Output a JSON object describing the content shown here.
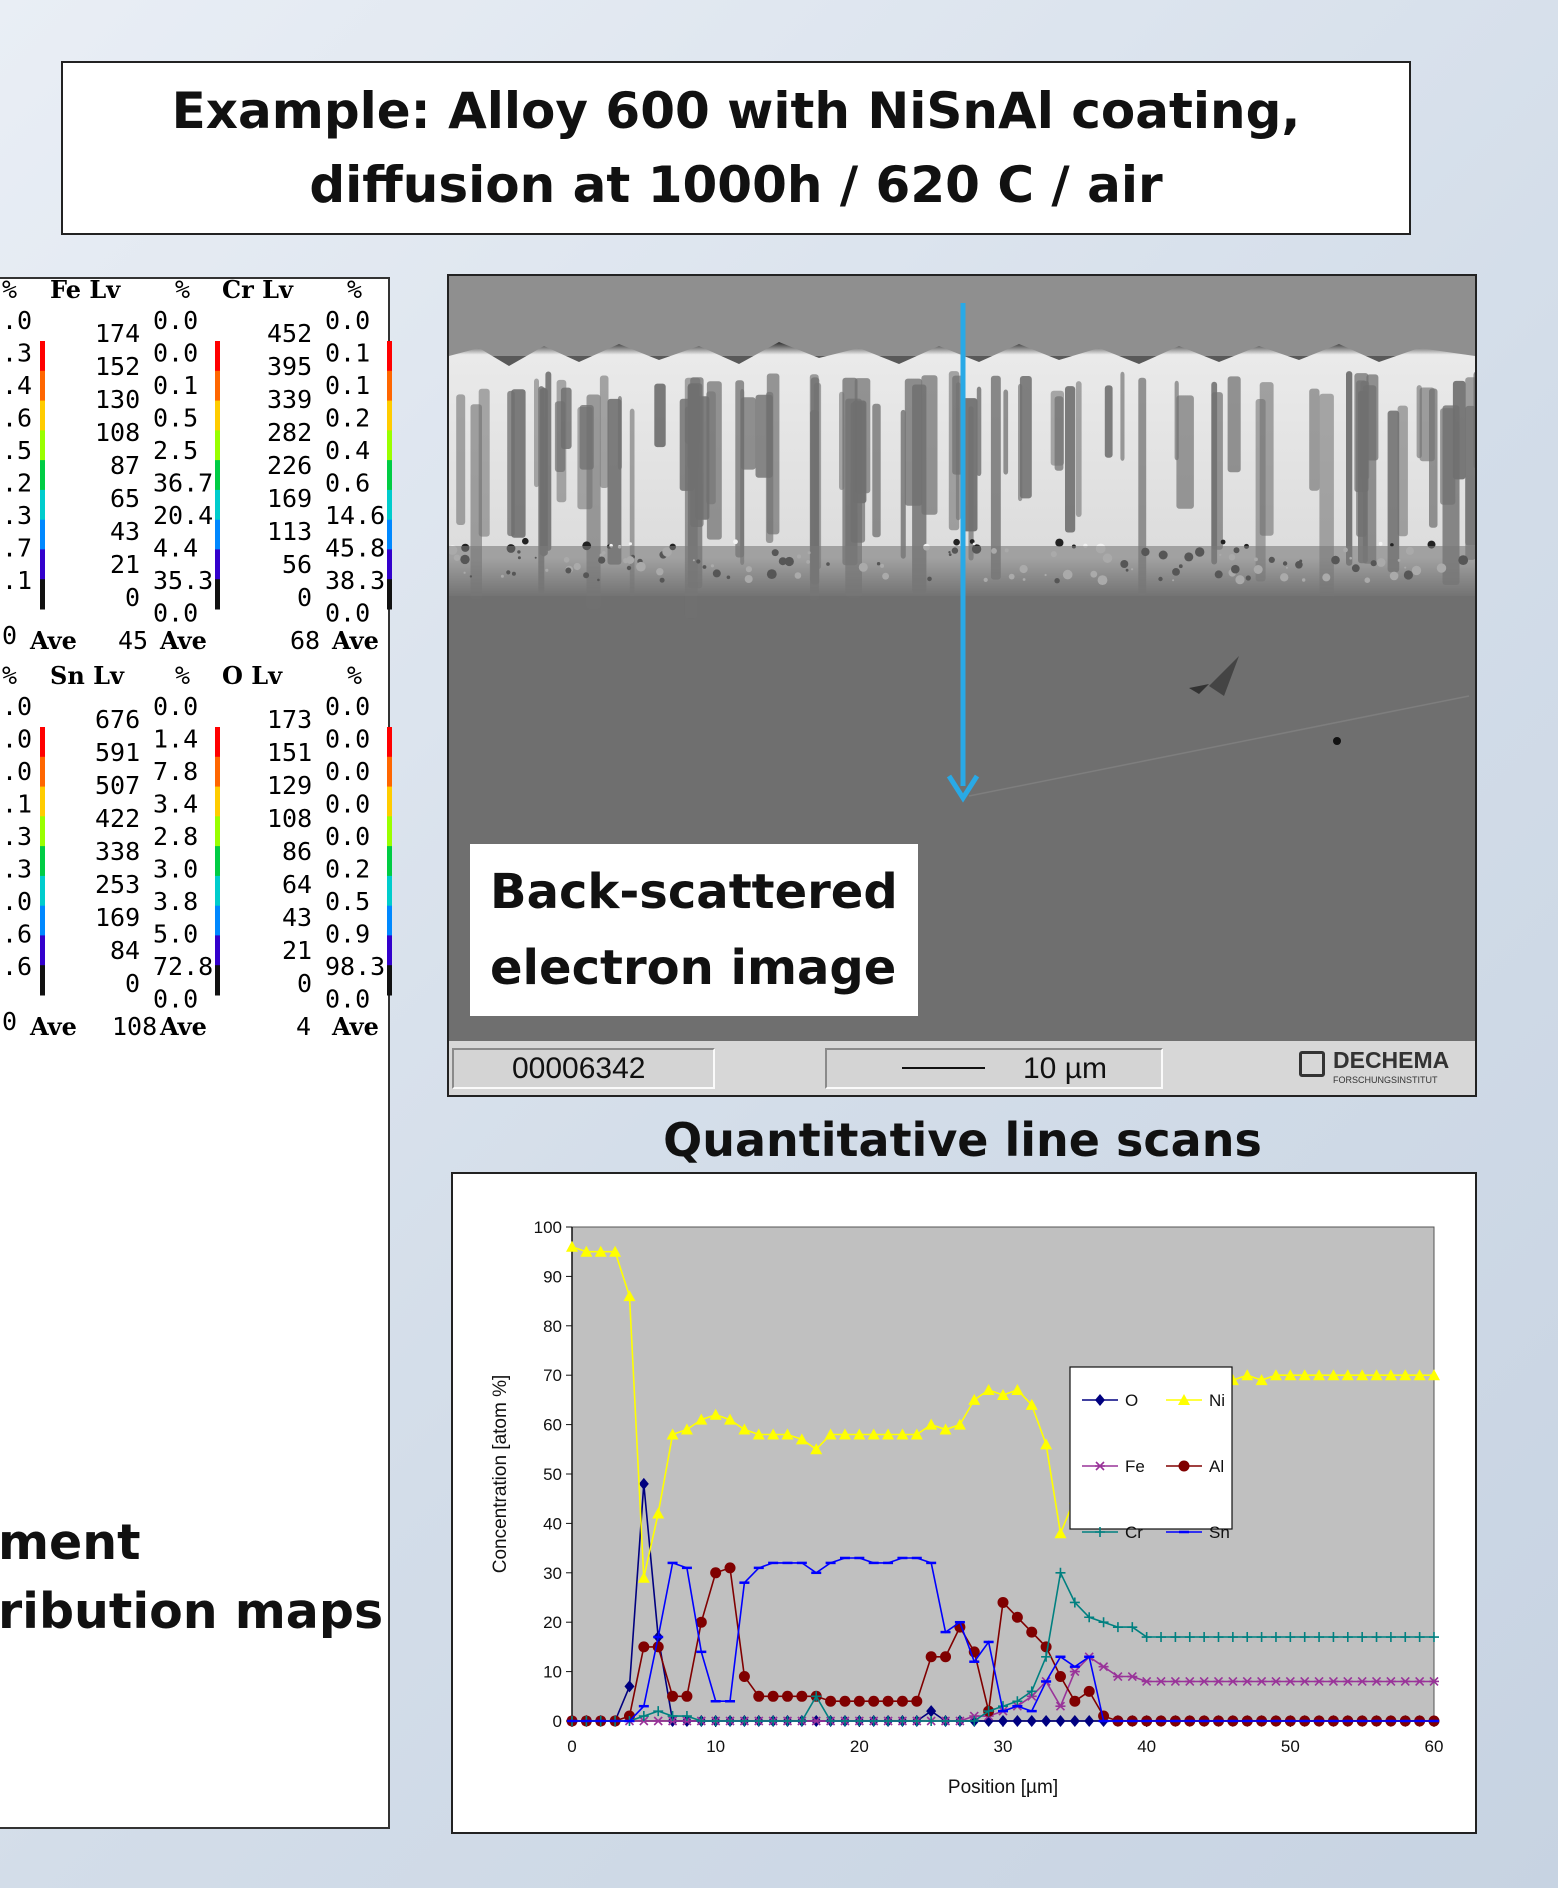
{
  "title": {
    "line1": "Example: Alloy 600 with NiSnAl coating,",
    "line2": "diffusion at 1000h / 620  C / air"
  },
  "maps_panel": {
    "maps": [
      {
        "element_label": "Fe Lv",
        "counts": [
          "174",
          "152",
          "130",
          "108",
          "87",
          "65",
          "43",
          "21",
          "0"
        ],
        "percentages": [
          "0.0",
          "0.0",
          "0.1",
          "0.5",
          "2.5",
          "36.7",
          "20.4",
          "4.4",
          "35.3",
          "0.0"
        ],
        "ave_value": "45",
        "ave_label": "Ave"
      },
      {
        "element_label": "Cr Lv",
        "counts": [
          "452",
          "395",
          "339",
          "282",
          "226",
          "169",
          "113",
          "56",
          "0"
        ],
        "percentages": [
          "0.0",
          "0.1",
          "0.1",
          "0.2",
          "0.4",
          "0.6",
          "14.6",
          "45.8",
          "38.3",
          "0.0"
        ],
        "ave_value": "68",
        "ave_label": "Ave"
      },
      {
        "element_label": "Sn Lv",
        "counts": [
          "676",
          "591",
          "507",
          "422",
          "338",
          "253",
          "169",
          "84",
          "0"
        ],
        "percentages": [
          "0.0",
          "1.4",
          "7.8",
          "3.4",
          "2.8",
          "3.0",
          "3.8",
          "5.0",
          "72.8",
          "0.0"
        ],
        "ave_value": "108",
        "ave_label": "Ave"
      },
      {
        "element_label": "O  Lv",
        "counts": [
          "173",
          "151",
          "129",
          "108",
          "86",
          "64",
          "43",
          "21",
          "0"
        ],
        "percentages": [
          "0.0",
          "0.0",
          "0.0",
          "0.0",
          "0.0",
          "0.2",
          "0.5",
          "0.9",
          "98.3",
          "0.0"
        ],
        "ave_value": "4",
        "ave_label": "Ave"
      }
    ],
    "cut_left_top": {
      "percentages": [
        ".0",
        ".3",
        ".4",
        ".6",
        ".5",
        ".2",
        ".3",
        ".7",
        ".1"
      ],
      "tail": "0",
      "ave_label": "Ave"
    },
    "cut_left_bottom": {
      "percentages": [
        ".0",
        ".0",
        ".0",
        ".1",
        ".3",
        ".3",
        ".0",
        ".6",
        ".6"
      ],
      "tail": "0",
      "ave_label": "Ave"
    },
    "percent_sign": "%",
    "caption_line1": "ment",
    "caption_line2": "ribution maps"
  },
  "sem_image": {
    "label_line1": "Back-scattered",
    "label_line2": "electron image",
    "image_number": "00006342",
    "scale_label": "10 µm",
    "logo_text": "DECHEMA",
    "logo_subtext": "FORSCHUNGSINSTITUT",
    "arrow_color": "#29a9e6"
  },
  "line_scan_title": "Quantitative line scans",
  "chart_data": {
    "type": "line",
    "xlabel": "Position [µm]",
    "ylabel": "Concentration [atom %]",
    "xlim": [
      0,
      60
    ],
    "ylim": [
      0,
      100
    ],
    "xticks": [
      0,
      10,
      20,
      30,
      40,
      50,
      60
    ],
    "yticks": [
      0,
      10,
      20,
      30,
      40,
      50,
      60,
      70,
      80,
      90,
      100
    ],
    "plot_background": "#c0c0c0",
    "legend_position": "right",
    "x": [
      0,
      1,
      2,
      3,
      4,
      5,
      6,
      7,
      8,
      9,
      10,
      11,
      12,
      13,
      14,
      15,
      16,
      17,
      18,
      19,
      20,
      21,
      22,
      23,
      24,
      25,
      26,
      27,
      28,
      29,
      30,
      31,
      32,
      33,
      34,
      35,
      36,
      37,
      38,
      39,
      40,
      41,
      42,
      43,
      44,
      45,
      46,
      47,
      48,
      49,
      50,
      51,
      52,
      53,
      54,
      55,
      56,
      57,
      58,
      59,
      60
    ],
    "series": [
      {
        "name": "O",
        "color": "#000080",
        "marker": "diamond",
        "values": [
          0,
          0,
          0,
          0,
          7,
          48,
          17,
          0,
          0,
          0,
          0,
          0,
          0,
          0,
          0,
          0,
          0,
          0,
          0,
          0,
          0,
          0,
          0,
          0,
          0,
          2,
          0,
          0,
          0,
          0,
          0,
          0,
          0,
          0,
          0,
          0,
          0,
          0,
          0,
          0,
          0,
          0,
          0,
          0,
          0,
          0,
          0,
          0,
          0,
          0,
          0,
          0,
          0,
          0,
          0,
          0,
          0,
          0,
          0,
          0,
          0
        ]
      },
      {
        "name": "Ni",
        "color": "#ffff00",
        "marker": "triangle",
        "values": [
          96,
          95,
          95,
          95,
          86,
          29,
          42,
          58,
          59,
          61,
          62,
          61,
          59,
          58,
          58,
          58,
          57,
          55,
          58,
          58,
          58,
          58,
          58,
          58,
          58,
          60,
          59,
          60,
          65,
          67,
          66,
          67,
          64,
          56,
          38,
          45,
          59,
          63,
          65,
          67,
          69,
          70,
          70,
          70,
          70,
          70,
          69,
          70,
          69,
          70,
          70,
          70,
          70,
          70,
          70,
          70,
          70,
          70,
          70,
          70,
          70
        ]
      },
      {
        "name": "Fe",
        "color": "#993399",
        "marker": "star",
        "values": [
          0,
          0,
          0,
          0,
          0,
          0,
          0,
          0,
          0,
          0,
          0,
          0,
          0,
          0,
          0,
          0,
          0,
          0,
          0,
          0,
          0,
          0,
          0,
          0,
          0,
          0,
          0,
          0,
          1,
          1,
          2,
          3,
          5,
          8,
          3,
          10,
          13,
          11,
          9,
          9,
          8,
          8,
          8,
          8,
          8,
          8,
          8,
          8,
          8,
          8,
          8,
          8,
          8,
          8,
          8,
          8,
          8,
          8,
          8,
          8,
          8
        ]
      },
      {
        "name": "Al",
        "color": "#800000",
        "marker": "circle",
        "values": [
          0,
          0,
          0,
          0,
          1,
          15,
          15,
          5,
          5,
          20,
          30,
          31,
          9,
          5,
          5,
          5,
          5,
          5,
          4,
          4,
          4,
          4,
          4,
          4,
          4,
          13,
          13,
          19,
          14,
          2,
          24,
          21,
          18,
          15,
          9,
          4,
          6,
          1,
          0,
          0,
          0,
          0,
          0,
          0,
          0,
          0,
          0,
          0,
          0,
          0,
          0,
          0,
          0,
          0,
          0,
          0,
          0,
          0,
          0,
          0,
          0
        ]
      },
      {
        "name": "Cr",
        "color": "#008080",
        "marker": "plus",
        "values": [
          0,
          0,
          0,
          0,
          0,
          1,
          2,
          1,
          1,
          0,
          0,
          0,
          0,
          0,
          0,
          0,
          0,
          5,
          0,
          0,
          0,
          0,
          0,
          0,
          0,
          0,
          0,
          0,
          0,
          2,
          3,
          4,
          6,
          13,
          30,
          24,
          21,
          20,
          19,
          19,
          17,
          17,
          17,
          17,
          17,
          17,
          17,
          17,
          17,
          17,
          17,
          17,
          17,
          17,
          17,
          17,
          17,
          17,
          17,
          17,
          17
        ]
      },
      {
        "name": "Sn",
        "color": "#0000ff",
        "marker": "dash",
        "values": [
          0,
          0,
          0,
          0,
          0,
          3,
          17,
          32,
          31,
          14,
          4,
          4,
          28,
          31,
          32,
          32,
          32,
          30,
          32,
          33,
          33,
          32,
          32,
          33,
          33,
          32,
          18,
          20,
          12,
          16,
          2,
          3,
          2,
          8,
          13,
          11,
          13,
          0,
          0,
          0,
          0,
          0,
          0,
          0,
          0,
          0,
          0,
          0,
          0,
          0,
          0,
          0,
          0,
          0,
          0,
          0,
          0,
          0,
          0,
          0,
          0
        ]
      }
    ]
  }
}
